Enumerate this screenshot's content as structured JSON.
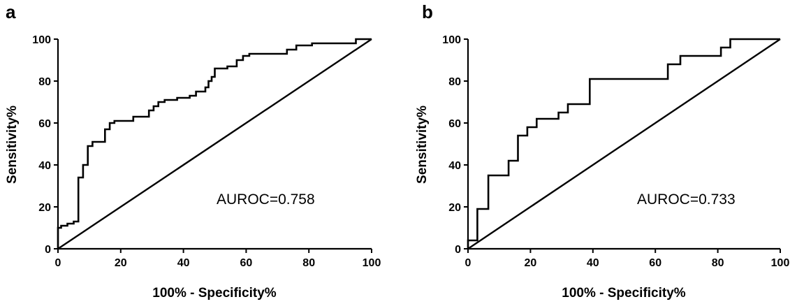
{
  "chart_data": [
    {
      "type": "line",
      "panel_label": "a",
      "xlabel": "100% - Specificity%",
      "ylabel": "Sensitivity%",
      "xlim": [
        0,
        100
      ],
      "ylim": [
        0,
        100
      ],
      "xticks": [
        "0",
        "20",
        "40",
        "60",
        "80",
        "100"
      ],
      "yticks": [
        "0",
        "20",
        "40",
        "60",
        "80",
        "100"
      ],
      "annotation": "AUROC=0.758",
      "grid": false,
      "series": [
        {
          "values": [
            [
              0,
              0
            ],
            [
              0,
              10
            ],
            [
              1,
              10
            ],
            [
              1,
              11
            ],
            [
              3,
              11
            ],
            [
              3,
              12
            ],
            [
              5,
              12
            ],
            [
              5,
              13
            ],
            [
              6.5,
              13
            ],
            [
              6.5,
              34
            ],
            [
              8,
              34
            ],
            [
              8,
              40
            ],
            [
              9.5,
              40
            ],
            [
              9.5,
              49
            ],
            [
              11,
              49
            ],
            [
              11,
              51
            ],
            [
              15,
              51
            ],
            [
              15,
              57
            ],
            [
              16.5,
              57
            ],
            [
              16.5,
              60
            ],
            [
              18,
              60
            ],
            [
              18,
              61
            ],
            [
              24,
              61
            ],
            [
              24,
              63
            ],
            [
              29,
              63
            ],
            [
              29,
              66
            ],
            [
              30.5,
              66
            ],
            [
              30.5,
              68
            ],
            [
              32,
              68
            ],
            [
              32,
              70
            ],
            [
              34,
              70
            ],
            [
              34,
              71
            ],
            [
              38,
              71
            ],
            [
              38,
              72
            ],
            [
              42,
              72
            ],
            [
              42,
              73
            ],
            [
              44,
              73
            ],
            [
              44,
              75
            ],
            [
              47,
              75
            ],
            [
              47,
              77
            ],
            [
              48,
              77
            ],
            [
              48,
              80
            ],
            [
              49,
              80
            ],
            [
              49,
              82
            ],
            [
              50,
              82
            ],
            [
              50,
              86
            ],
            [
              54,
              86
            ],
            [
              54,
              87
            ],
            [
              57,
              87
            ],
            [
              57,
              90
            ],
            [
              59,
              90
            ],
            [
              59,
              92
            ],
            [
              61,
              92
            ],
            [
              61,
              93
            ],
            [
              73,
              93
            ],
            [
              73,
              95
            ],
            [
              76,
              95
            ],
            [
              76,
              97
            ],
            [
              81,
              97
            ],
            [
              81,
              98
            ],
            [
              95,
              98
            ],
            [
              95,
              100
            ],
            [
              100,
              100
            ]
          ]
        },
        {
          "values": [
            [
              0,
              0
            ],
            [
              100,
              100
            ]
          ]
        }
      ]
    },
    {
      "type": "line",
      "panel_label": "b",
      "xlabel": "100% - Specificity%",
      "ylabel": "Sensitivity%",
      "xlim": [
        0,
        100
      ],
      "ylim": [
        0,
        100
      ],
      "xticks": [
        "0",
        "20",
        "40",
        "60",
        "80",
        "100"
      ],
      "yticks": [
        "0",
        "20",
        "40",
        "60",
        "80",
        "100"
      ],
      "annotation": "AUROC=0.733",
      "grid": false,
      "series": [
        {
          "values": [
            [
              0,
              0
            ],
            [
              0,
              4
            ],
            [
              3,
              4
            ],
            [
              3,
              19
            ],
            [
              6.5,
              19
            ],
            [
              6.5,
              35
            ],
            [
              13,
              35
            ],
            [
              13,
              42
            ],
            [
              16,
              42
            ],
            [
              16,
              54
            ],
            [
              19,
              54
            ],
            [
              19,
              58
            ],
            [
              22,
              58
            ],
            [
              22,
              62
            ],
            [
              29,
              62
            ],
            [
              29,
              65
            ],
            [
              32,
              65
            ],
            [
              32,
              69
            ],
            [
              39,
              69
            ],
            [
              39,
              81
            ],
            [
              64,
              81
            ],
            [
              64,
              88
            ],
            [
              68,
              88
            ],
            [
              68,
              92
            ],
            [
              81,
              92
            ],
            [
              81,
              96
            ],
            [
              84,
              96
            ],
            [
              84,
              100
            ],
            [
              100,
              100
            ]
          ]
        },
        {
          "values": [
            [
              0,
              0
            ],
            [
              100,
              100
            ]
          ]
        }
      ]
    }
  ]
}
